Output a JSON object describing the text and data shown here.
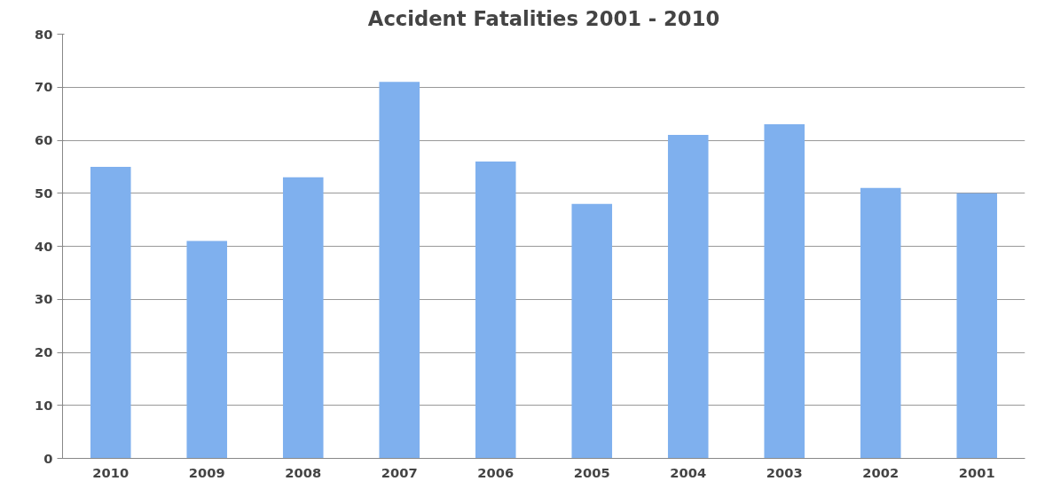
{
  "chart_data": {
    "type": "bar",
    "title": "Accident Fatalities 2001 - 2010",
    "categories": [
      "2010",
      "2009",
      "2008",
      "2007",
      "2006",
      "2005",
      "2004",
      "2003",
      "2002",
      "2001"
    ],
    "values": [
      55,
      41,
      53,
      71,
      56,
      48,
      61,
      63,
      51,
      50
    ],
    "color": "#7fb0ee",
    "ylim": [
      0,
      80
    ],
    "yticks": [
      0,
      10,
      20,
      30,
      40,
      50,
      60,
      70,
      80
    ],
    "grid": "y"
  }
}
